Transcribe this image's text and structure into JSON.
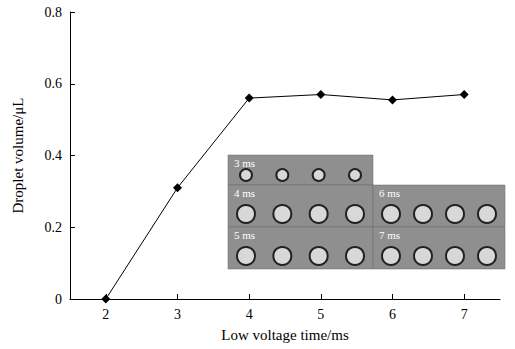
{
  "chart_data": {
    "type": "line",
    "x_label": "Low voltage time/ms",
    "y_label": "Droplet volume/μL",
    "x": [
      2,
      3,
      4,
      5,
      6,
      7
    ],
    "values": [
      0,
      0.31,
      0.56,
      0.57,
      0.555,
      0.57
    ],
    "color": "#000000",
    "marker": "diamond",
    "xlim": [
      1.5,
      7.5
    ],
    "xticks": [
      2,
      3,
      4,
      5,
      6,
      7
    ],
    "ylim": [
      0,
      0.8
    ],
    "yticks": [
      0,
      0.2,
      0.4,
      0.6,
      0.8
    ],
    "grid": false,
    "annotations": [
      "3 ms",
      "4 ms",
      "6 ms",
      "5 ms",
      "7 ms"
    ]
  }
}
